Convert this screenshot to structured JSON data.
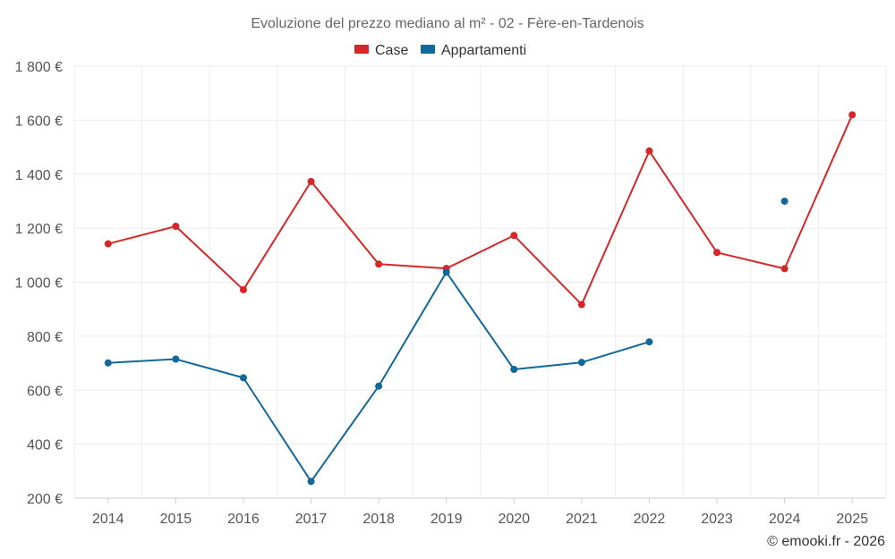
{
  "chart_data": {
    "type": "line",
    "title": "Evoluzione del prezzo mediano al m² - 02 - Fère-en-Tardenois",
    "categories": [
      "2014",
      "2015",
      "2016",
      "2017",
      "2018",
      "2019",
      "2020",
      "2021",
      "2022",
      "2023",
      "2024",
      "2025"
    ],
    "ylim": [
      200,
      1800
    ],
    "yticks": [
      200,
      400,
      600,
      800,
      1000,
      1200,
      1400,
      1600,
      1800
    ],
    "ytick_labels": [
      "200 €",
      "400 €",
      "600 €",
      "800 €",
      "1 000 €",
      "1 200 €",
      "1 400 €",
      "1 600 €",
      "1 800 €"
    ],
    "grid": true,
    "legend_position": "top-center",
    "series": [
      {
        "name": "Case",
        "color": "#d62728",
        "values": [
          1142,
          1207,
          972,
          1373,
          1067,
          1051,
          1173,
          917,
          1486,
          1110,
          1050,
          1620
        ]
      },
      {
        "name": "Appartamenti",
        "color": "#11689a",
        "values": [
          701,
          715,
          646,
          262,
          615,
          1037,
          677,
          703,
          779,
          null,
          1300,
          null
        ]
      }
    ]
  },
  "credit": "© emooki.fr - 2026"
}
